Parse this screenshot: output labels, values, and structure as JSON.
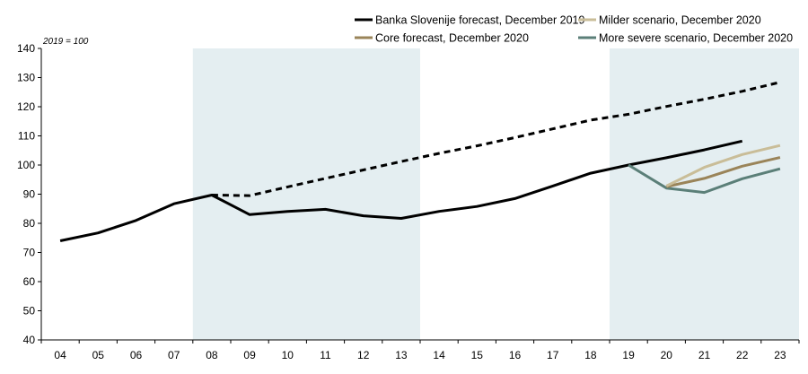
{
  "chart_data": {
    "type": "line",
    "unit_label": "2019 = 100",
    "ylim": [
      40,
      140
    ],
    "yticks": [
      40,
      50,
      60,
      70,
      80,
      90,
      100,
      110,
      120,
      130,
      140
    ],
    "categories": [
      "04",
      "05",
      "06",
      "07",
      "08",
      "09",
      "10",
      "11",
      "12",
      "13",
      "14",
      "15",
      "16",
      "17",
      "18",
      "19",
      "20",
      "21",
      "22",
      "23"
    ],
    "grid": false,
    "legend_position": "top-right",
    "shaded_periods": [
      {
        "from": "08",
        "to": "13"
      },
      {
        "from": "19",
        "to": "23"
      }
    ],
    "shade_color": "#e4eef1",
    "series": [
      {
        "name": "Banka Slovenije forecast, December 2019",
        "color": "#000000",
        "style": "solid",
        "points": [
          [
            "04",
            74
          ],
          [
            "05",
            76.7
          ],
          [
            "06",
            81
          ],
          [
            "07",
            86.7
          ],
          [
            "08",
            89.7
          ],
          [
            "09",
            83
          ],
          [
            "10",
            84.1
          ],
          [
            "11",
            84.8
          ],
          [
            "12",
            82.6
          ],
          [
            "13",
            81.7
          ],
          [
            "14",
            84.1
          ],
          [
            "15",
            85.8
          ],
          [
            "16",
            88.5
          ],
          [
            "17",
            92.8
          ],
          [
            "18",
            97.2
          ],
          [
            "19",
            100
          ],
          [
            "20",
            102.5
          ],
          [
            "21",
            105.2
          ],
          [
            "22",
            108.2
          ]
        ]
      },
      {
        "name": "",
        "color": "#000000",
        "style": "dashed",
        "points": [
          [
            "08",
            89.7
          ],
          [
            "09",
            89.5
          ],
          [
            "10",
            92.5
          ],
          [
            "11",
            95.4
          ],
          [
            "12",
            98.3
          ],
          [
            "13",
            101.2
          ],
          [
            "14",
            104
          ],
          [
            "15",
            106.6
          ],
          [
            "16",
            109.4
          ],
          [
            "17",
            112.4
          ],
          [
            "18",
            115.4
          ],
          [
            "19",
            117.4
          ],
          [
            "20",
            120.1
          ],
          [
            "21",
            122.6
          ],
          [
            "22",
            125.3
          ],
          [
            "23",
            128.4
          ]
        ]
      },
      {
        "name": "Milder scenario, December 2020",
        "color": "#c9bd98",
        "style": "solid",
        "points": [
          [
            "20",
            92.8
          ],
          [
            "21",
            99.2
          ],
          [
            "22",
            103.6
          ],
          [
            "23",
            106.7
          ]
        ]
      },
      {
        "name": "Core forecast, December 2020",
        "color": "#9a8459",
        "style": "solid",
        "points": [
          [
            "20",
            92.6
          ],
          [
            "21",
            95.4
          ],
          [
            "22",
            99.6
          ],
          [
            "23",
            102.6
          ]
        ]
      },
      {
        "name": "More severe scenario, December 2020",
        "color": "#5b7f78",
        "style": "solid",
        "points": [
          [
            "19",
            100
          ],
          [
            "20",
            92.1
          ],
          [
            "21",
            90.6
          ],
          [
            "22",
            95.3
          ],
          [
            "23",
            98.7
          ]
        ]
      }
    ]
  }
}
